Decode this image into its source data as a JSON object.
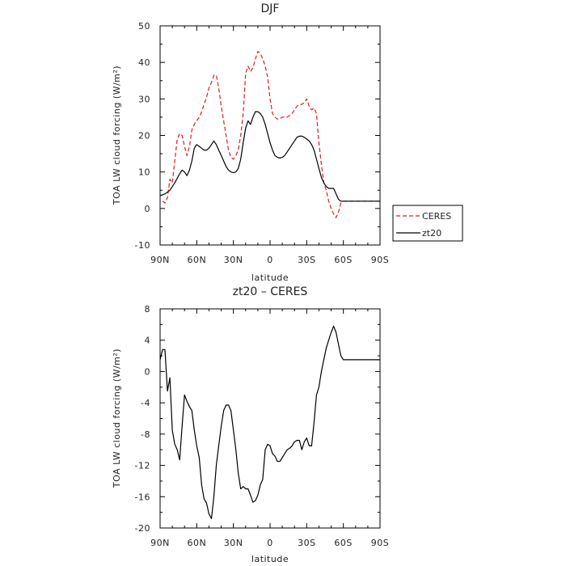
{
  "chart_data": [
    {
      "type": "line",
      "title": "DJF",
      "xlabel": "latitude",
      "ylabel": "TOA LW cloud forcing (W/m²)",
      "xlim": [
        90,
        -90
      ],
      "ylim": [
        -10,
        50
      ],
      "xticks": [
        90,
        60,
        30,
        0,
        -30,
        -60,
        -90
      ],
      "xtick_labels": [
        "90N",
        "60N",
        "30N",
        "0",
        "30S",
        "60S",
        "90S"
      ],
      "yticks": [
        -10,
        0,
        10,
        20,
        30,
        40,
        50
      ],
      "ytick_labels": [
        "-10",
        "0",
        "10",
        "20",
        "30",
        "40",
        "50"
      ],
      "legend_position": "outside-right",
      "series": [
        {
          "name": "CERES",
          "color": "#e41a1c",
          "style": "dashed",
          "x": [
            88,
            86,
            84,
            82,
            80,
            78,
            76,
            74,
            72,
            70,
            68,
            66,
            64,
            62,
            60,
            58,
            56,
            54,
            52,
            50,
            48,
            46,
            44,
            42,
            40,
            38,
            36,
            34,
            32,
            30,
            28,
            26,
            24,
            22,
            20,
            18,
            16,
            14,
            12,
            10,
            8,
            6,
            4,
            2,
            0,
            -2,
            -4,
            -6,
            -8,
            -10,
            -12,
            -14,
            -16,
            -18,
            -20,
            -22,
            -24,
            -26,
            -28,
            -30,
            -32,
            -34,
            -36,
            -38,
            -40,
            -42,
            -44,
            -46,
            -48,
            -50,
            -52,
            -54,
            -56,
            -58,
            -60,
            -62,
            -64,
            -66,
            -68,
            -70,
            -72,
            -74,
            -76,
            -78,
            -80,
            -82,
            -84,
            -86,
            -88,
            -90
          ],
          "y": [
            2,
            1.5,
            3,
            8,
            7,
            13,
            19,
            20.5,
            20,
            17,
            14.5,
            17,
            21.5,
            23,
            24,
            25,
            26.5,
            28.5,
            30.5,
            33,
            34.5,
            36.5,
            36.5,
            33,
            28,
            24,
            20,
            16,
            14,
            13.5,
            14.5,
            16,
            20,
            26,
            37,
            39,
            37.5,
            38.5,
            41,
            43,
            42.5,
            41,
            39,
            36,
            30,
            26,
            25,
            24.5,
            24.5,
            25,
            25,
            25,
            25.5,
            26,
            27,
            28,
            28.5,
            28.5,
            29,
            30,
            28,
            27,
            27.5,
            26,
            18,
            12,
            7,
            5,
            2,
            0,
            -1.5,
            -2.5,
            -1,
            1.5,
            2,
            2,
            2,
            2,
            2,
            2,
            2,
            2,
            2,
            2,
            2,
            2,
            2,
            2,
            2,
            2
          ],
          "note": ""
        },
        {
          "name": "zt20",
          "color": "#000000",
          "style": "solid",
          "x": [
            90,
            86,
            82,
            78,
            74,
            72,
            70,
            68,
            66,
            64,
            62,
            60,
            58,
            56,
            54,
            52,
            50,
            48,
            46,
            44,
            42,
            40,
            38,
            36,
            34,
            32,
            30,
            28,
            26,
            24,
            22,
            20,
            18,
            16,
            14,
            12,
            10,
            8,
            6,
            4,
            2,
            0,
            -2,
            -4,
            -6,
            -8,
            -10,
            -12,
            -14,
            -16,
            -18,
            -20,
            -22,
            -24,
            -26,
            -28,
            -30,
            -32,
            -34,
            -36,
            -38,
            -40,
            -42,
            -44,
            -46,
            -48,
            -50,
            -52,
            -54,
            -56,
            -58,
            -60,
            -62,
            -64,
            -66,
            -68,
            -70,
            -72,
            -74,
            -76,
            -78,
            -80,
            -82,
            -84,
            -86,
            -88,
            -90
          ],
          "y": [
            3.5,
            4,
            5,
            7,
            9.5,
            10.5,
            10,
            9,
            10.5,
            13,
            16.5,
            17.5,
            17,
            16.5,
            16,
            16,
            16.5,
            17.5,
            18.5,
            17.5,
            16,
            14.5,
            13,
            11.5,
            10.5,
            10,
            9.8,
            10,
            11,
            13.5,
            18,
            22,
            24,
            23,
            25,
            26.5,
            26.5,
            26,
            25,
            23,
            20.5,
            18,
            16,
            14.5,
            14,
            13.8,
            14,
            14.5,
            15.5,
            16.5,
            17.5,
            18.5,
            19.5,
            19.8,
            19.8,
            19.5,
            19,
            18.5,
            17.5,
            16,
            13.5,
            11,
            8.5,
            7,
            6,
            5.5,
            5.5,
            5.5,
            4,
            2.5,
            2,
            2,
            2,
            2,
            2,
            2,
            2,
            2,
            2,
            2,
            2,
            2,
            2,
            2,
            2,
            2,
            2
          ]
        }
      ]
    },
    {
      "type": "line",
      "title": "zt20 – CERES",
      "xlabel": "latitude",
      "ylabel": "TOA LW cloud forcing (W/m²)",
      "xlim": [
        90,
        -90
      ],
      "ylim": [
        -20,
        8
      ],
      "xticks": [
        90,
        60,
        30,
        0,
        -30,
        -60,
        -90
      ],
      "xtick_labels": [
        "90N",
        "60N",
        "30N",
        "0",
        "30S",
        "60S",
        "90S"
      ],
      "yticks": [
        -20,
        -16,
        -12,
        -8,
        -4,
        0,
        4,
        8
      ],
      "ytick_labels": [
        "-20",
        "-16",
        "-12",
        "-8",
        "-4",
        "0",
        "4",
        "8"
      ],
      "series": [
        {
          "color": "#000000",
          "style": "solid",
          "x": [
            90,
            88,
            86,
            84,
            82,
            80,
            78,
            76,
            74,
            72,
            70,
            68,
            66,
            64,
            62,
            60,
            58,
            56,
            54,
            52,
            50,
            48,
            46,
            44,
            42,
            40,
            38,
            36,
            34,
            32,
            30,
            28,
            26,
            24,
            22,
            20,
            18,
            16,
            14,
            12,
            10,
            8,
            6,
            4,
            2,
            0,
            -2,
            -4,
            -6,
            -8,
            -10,
            -12,
            -14,
            -16,
            -18,
            -20,
            -22,
            -24,
            -26,
            -28,
            -30,
            -32,
            -34,
            -36,
            -38,
            -40,
            -42,
            -44,
            -46,
            -48,
            -50,
            -52,
            -54,
            -56,
            -58,
            -60,
            -62,
            -64,
            -66,
            -68,
            -70,
            -72,
            -74,
            -76,
            -78,
            -80,
            -82,
            -84,
            -86,
            -88,
            -90
          ],
          "y": [
            1.5,
            2.8,
            2.8,
            -2.5,
            -0.8,
            -7.5,
            -9.3,
            -10,
            -11.3,
            -7,
            -3,
            -3.8,
            -4.5,
            -5,
            -7.5,
            -9.5,
            -11,
            -14.5,
            -16.3,
            -16.8,
            -18.2,
            -18.8,
            -16,
            -12,
            -9.5,
            -7,
            -5,
            -4.3,
            -4.3,
            -5,
            -7.5,
            -10,
            -13,
            -15,
            -14.7,
            -15,
            -15,
            -15.8,
            -16.7,
            -16.5,
            -15.8,
            -14.5,
            -13.8,
            -10,
            -9.3,
            -9.5,
            -10.5,
            -10.8,
            -11.5,
            -11.5,
            -11,
            -10.5,
            -10,
            -9.8,
            -9.5,
            -9,
            -8.8,
            -8.8,
            -10,
            -9,
            -8.5,
            -9.5,
            -9.5,
            -6.5,
            -3,
            -2,
            0,
            1.5,
            3,
            4,
            5,
            5.8,
            5,
            3.5,
            2,
            1.5,
            1.5,
            1.5,
            1.5,
            1.5,
            1.5,
            1.5,
            1.5,
            1.5,
            1.5,
            1.5,
            1.5,
            1.5,
            1.5,
            1.5,
            1.5
          ]
        }
      ]
    }
  ]
}
